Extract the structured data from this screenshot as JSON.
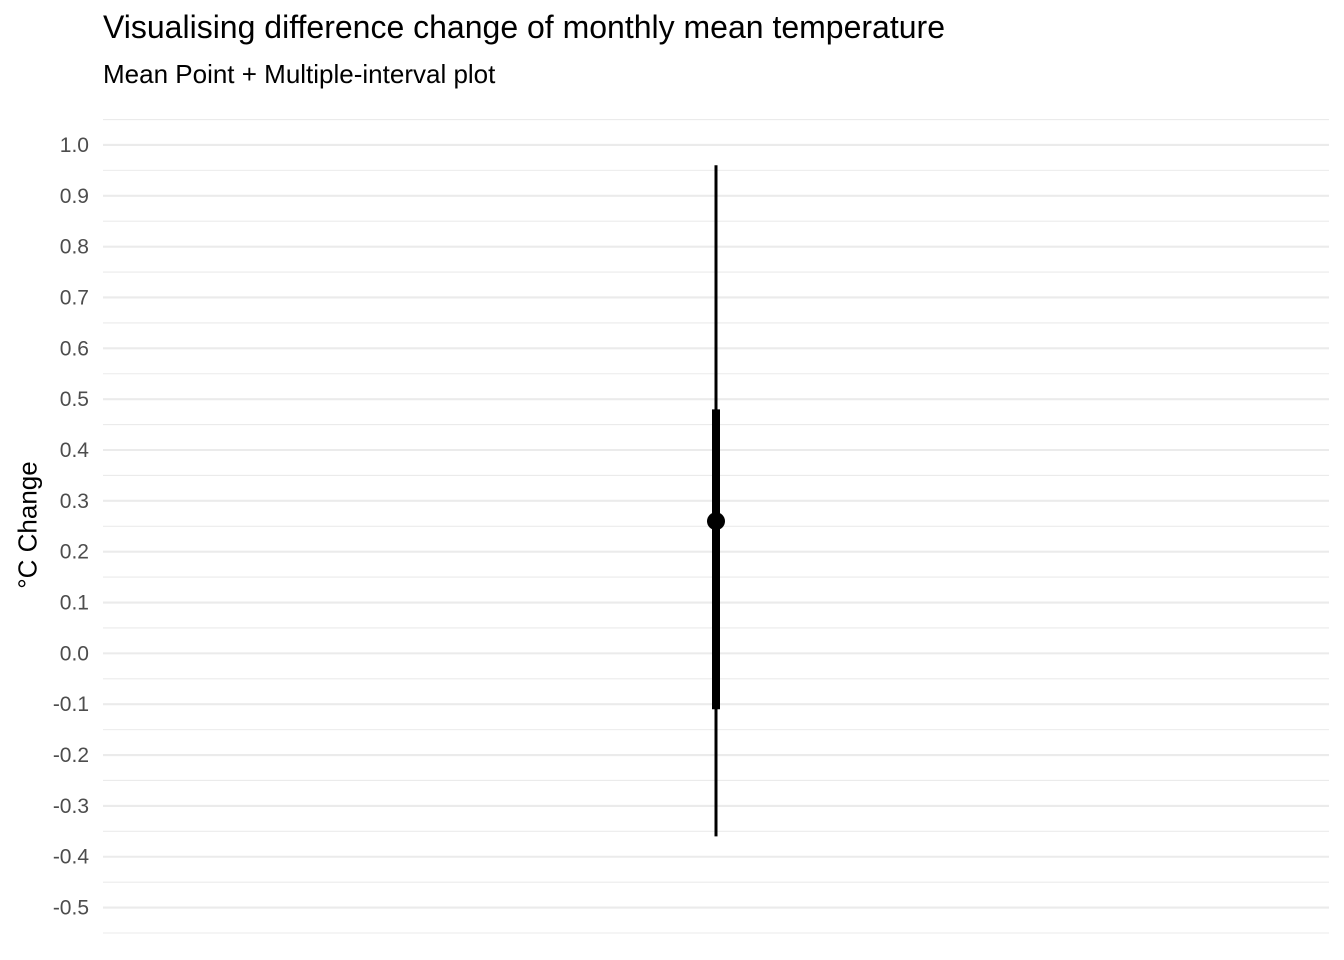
{
  "chart_data": {
    "type": "pointinterval",
    "title": "Visualising difference change of monthly mean temperature",
    "subtitle": "Mean Point + Multiple-interval plot",
    "xlabel": "",
    "ylabel": "°C Change",
    "ylim": [
      -0.55,
      1.055
    ],
    "yticks": [
      1.0,
      0.9,
      0.8,
      0.7,
      0.6,
      0.5,
      0.4,
      0.3,
      0.2,
      0.1,
      0.0,
      -0.1,
      -0.2,
      -0.3,
      -0.4,
      -0.5
    ],
    "ytick_labels": [
      "1.0",
      "0.9",
      "0.8",
      "0.7",
      "0.6",
      "0.5",
      "0.4",
      "0.3",
      "0.2",
      "0.1",
      "0.0",
      "-0.1",
      "-0.2",
      "-0.3",
      "-0.4",
      "-0.5"
    ],
    "grid": true,
    "mean": 0.26,
    "intervals": [
      {
        "lower": -0.36,
        "upper": 0.96
      },
      {
        "lower": -0.11,
        "upper": 0.48
      }
    ],
    "colors": {
      "mark": "#000000",
      "grid": "#ebebeb",
      "tick_text": "#4d4d4d"
    }
  }
}
